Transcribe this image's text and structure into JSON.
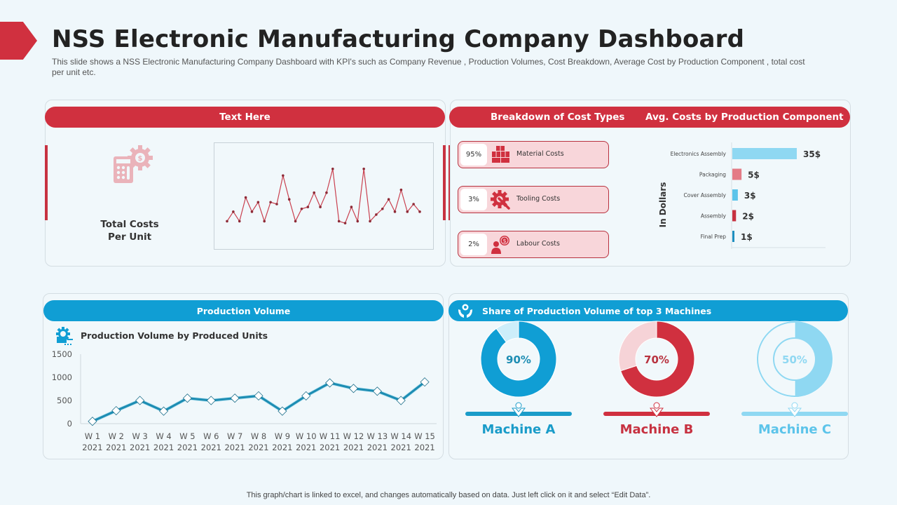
{
  "header": {
    "title": "NSS Electronic Manufacturing Company Dashboard",
    "subtitle": "This slide shows a NSS Electronic Manufacturing  Company Dashboard  with KPI's such as Company Revenue  , Production Volumes, Cost Breakdown, Average  Cost by Production Component  , total cost per unit etc."
  },
  "colors": {
    "red": "#d0303f",
    "blue": "#109ed4",
    "light_blue": "#8fd8f2",
    "pink": "#f8d6da"
  },
  "card_total_costs": {
    "header": "Text Here",
    "label_line1": "Total Costs",
    "label_line2": "Per Unit",
    "icon": "calculator-gear-dollar-icon"
  },
  "card_cost_breakdown": {
    "header_left": "Breakdown of Cost Types",
    "header_right": "Avg. Costs by Production Component",
    "cost_types": [
      {
        "percent": "95%",
        "label": "Material Costs",
        "icon": "material-boxes-icon"
      },
      {
        "percent": "3%",
        "label": "Tooling Costs",
        "icon": "gear-wrench-icon"
      },
      {
        "percent": "2%",
        "label": "Labour Costs",
        "icon": "worker-coin-icon"
      }
    ],
    "axis_label": "In Dollars"
  },
  "card_production_volume": {
    "header": "Production Volume",
    "chart_title": "Production Volume by Produced Units",
    "icon": "gear-chart-icon"
  },
  "card_machines": {
    "header": "Share of Production Volume of top 3 Machines",
    "icon": "hands-gear-icon",
    "machines": [
      {
        "name": "Machine A",
        "share": 90,
        "label": "90%",
        "color": "#109ed4",
        "rest_color": "#cdeefa"
      },
      {
        "name": "Machine B",
        "share": 70,
        "label": "70%",
        "color": "#d0303f",
        "rest_color": "#f6d3d7"
      },
      {
        "name": "Machine C",
        "share": 50,
        "label": "50%",
        "color": "#8fd8f2",
        "rest_color": "#f1f8fb"
      }
    ]
  },
  "footer": {
    "note": "This graph/chart is linked to excel,  and changes automatically based on data. Just left click on it and select “Edit Data”."
  },
  "chart_data": [
    {
      "type": "line",
      "title": "Total Costs Per Unit (sparkline)",
      "xlabel": "",
      "ylabel": "",
      "values": [
        1,
        2,
        1,
        3.5,
        2,
        3,
        1,
        3,
        2.8,
        5.8,
        3.3,
        1,
        2.3,
        2.5,
        4,
        2.5,
        4,
        6.5,
        1,
        0.8,
        2.5,
        1,
        6.5,
        1,
        1.7,
        2.3,
        3.3,
        2,
        4.3,
        2,
        2.8,
        2
      ]
    },
    {
      "type": "bar",
      "orientation": "horizontal",
      "title": "Avg. Costs by Production Component",
      "ylabel": "In Dollars",
      "categories": [
        "Electronics Assembly",
        "Packaging",
        "Cover Assembly",
        "Assembly",
        "Final Prep"
      ],
      "values": [
        35,
        5,
        3,
        2,
        1
      ],
      "data_labels": [
        "35$",
        "5$",
        "3$",
        "2$",
        "1$"
      ],
      "bar_colors": [
        "#8fd8f2",
        "#e47b86",
        "#5cc4ea",
        "#c73241",
        "#1f8fc0"
      ],
      "xlim": [
        0,
        60
      ]
    },
    {
      "type": "line",
      "title": "Production Volume by Produced Units",
      "categories": [
        "W 1 2021",
        "W 2 2021",
        "W 3 2021",
        "W 4 2021",
        "W 5 2021",
        "W 6 2021",
        "W 7 2021",
        "W 8 2021",
        "W 9 2021",
        "W 10 2021",
        "W 11 2021",
        "W 12 2021",
        "W 13 2021",
        "W 14 2021",
        "W 15 2021"
      ],
      "x_labels_line1": [
        "W 1",
        "W 2",
        "W 3",
        "W 4",
        "W 5",
        "W 6",
        "W 7",
        "W 8",
        "W 9",
        "W 10",
        "W 11",
        "W 12",
        "W 13",
        "W 14",
        "W 15"
      ],
      "x_labels_line2": [
        "2021",
        "2021",
        "2021",
        "2021",
        "2021",
        "2021",
        "2021",
        "2021",
        "2021",
        "2021",
        "2021",
        "2021",
        "2021",
        "2021",
        "2021"
      ],
      "values": [
        50,
        280,
        500,
        270,
        550,
        500,
        550,
        600,
        270,
        600,
        880,
        760,
        700,
        500,
        900
      ],
      "yticks": [
        "0",
        "500",
        "1000",
        "1500"
      ],
      "ylim": [
        0,
        1500
      ],
      "grid": false
    },
    {
      "type": "pie",
      "title": "Share of Production Volume of top 3 Machines",
      "categories": [
        "Machine A",
        "Machine B",
        "Machine C"
      ],
      "values": [
        90,
        70,
        50
      ]
    }
  ]
}
